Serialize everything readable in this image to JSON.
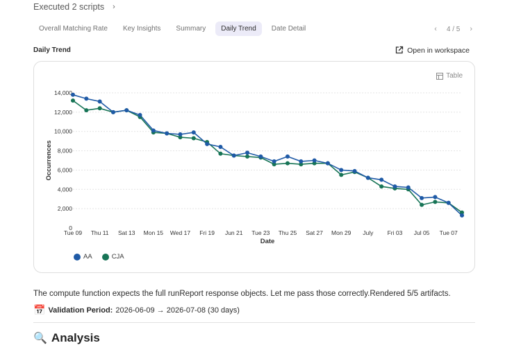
{
  "header": {
    "executed_label": "Executed 2 scripts",
    "chevron": "›"
  },
  "tabs": [
    {
      "label": "Overall Matching Rate",
      "active": false
    },
    {
      "label": "Key Insights",
      "active": false
    },
    {
      "label": "Summary",
      "active": false
    },
    {
      "label": "Daily Trend",
      "active": true
    },
    {
      "label": "Date Detail",
      "active": false
    }
  ],
  "pager": {
    "prev": "‹",
    "label": "4 / 5",
    "next": "›"
  },
  "section": {
    "title": "Daily Trend",
    "open_label": "Open in workspace",
    "open_icon": "external-link-icon"
  },
  "card": {
    "table_label": "Table",
    "table_icon": "table-icon"
  },
  "colors": {
    "AA": "#1f5aa6",
    "CJA": "#177456",
    "accent": "#ecebf8"
  },
  "chart_data": {
    "type": "line",
    "xlabel": "Date",
    "ylabel": "Occurrences",
    "ylim": [
      0,
      14000
    ],
    "yticks": [
      "0",
      "2,000",
      "4,000",
      "6,000",
      "8,000",
      "10,000",
      "12,000",
      "14,000"
    ],
    "grid": true,
    "legend": "bottom-left",
    "x": [
      "2026-06-09",
      "2026-06-10",
      "2026-06-11",
      "2026-06-12",
      "2026-06-13",
      "2026-06-14",
      "2026-06-15",
      "2026-06-16",
      "2026-06-17",
      "2026-06-18",
      "2026-06-19",
      "2026-06-20",
      "2026-06-21",
      "2026-06-22",
      "2026-06-23",
      "2026-06-24",
      "2026-06-25",
      "2026-06-26",
      "2026-06-27",
      "2026-06-28",
      "2026-06-29",
      "2026-06-30",
      "2026-07-01",
      "2026-07-02",
      "2026-07-03",
      "2026-07-04",
      "2026-07-05",
      "2026-07-06",
      "2026-07-07",
      "2026-07-08"
    ],
    "tick_labels": [
      {
        "index": 0,
        "label": "Tue 09"
      },
      {
        "index": 2,
        "label": "Thu 11"
      },
      {
        "index": 4,
        "label": "Sat 13"
      },
      {
        "index": 6,
        "label": "Mon 15"
      },
      {
        "index": 8,
        "label": "Wed 17"
      },
      {
        "index": 10,
        "label": "Fri 19"
      },
      {
        "index": 12,
        "label": "Jun 21"
      },
      {
        "index": 14,
        "label": "Tue 23"
      },
      {
        "index": 16,
        "label": "Thu 25"
      },
      {
        "index": 18,
        "label": "Sat 27"
      },
      {
        "index": 20,
        "label": "Mon 29"
      },
      {
        "index": 22,
        "label": "July"
      },
      {
        "index": 24,
        "label": "Fri 03"
      },
      {
        "index": 26,
        "label": "Jul 05"
      },
      {
        "index": 28,
        "label": "Tue 07"
      }
    ],
    "series": [
      {
        "name": "AA",
        "values": [
          13800,
          13400,
          13100,
          12000,
          12200,
          11700,
          10100,
          9800,
          9700,
          9900,
          8700,
          8400,
          7500,
          7800,
          7400,
          6900,
          7400,
          6900,
          7000,
          6700,
          6000,
          5900,
          5200,
          5000,
          4300,
          4200,
          3100,
          3200,
          2600,
          1300
        ]
      },
      {
        "name": "CJA",
        "values": [
          13200,
          12200,
          12400,
          12000,
          12200,
          11500,
          9900,
          9800,
          9400,
          9300,
          8900,
          7700,
          7500,
          7400,
          7300,
          6600,
          6700,
          6600,
          6700,
          6700,
          5500,
          5800,
          5200,
          4300,
          4100,
          4000,
          2400,
          2700,
          2600,
          1600
        ]
      }
    ]
  },
  "message": "The compute function expects the full runReport response objects. Let me pass those correctly.Rendered 5/5 artifacts.",
  "validation": {
    "icon": "calendar-icon",
    "emoji": "📅",
    "label": "Validation Period:",
    "value": "2026-06-09 → 2026-07-08 (30 days)"
  },
  "analysis": {
    "icon": "magnifier-icon",
    "emoji": "🔍",
    "title": "Analysis"
  }
}
